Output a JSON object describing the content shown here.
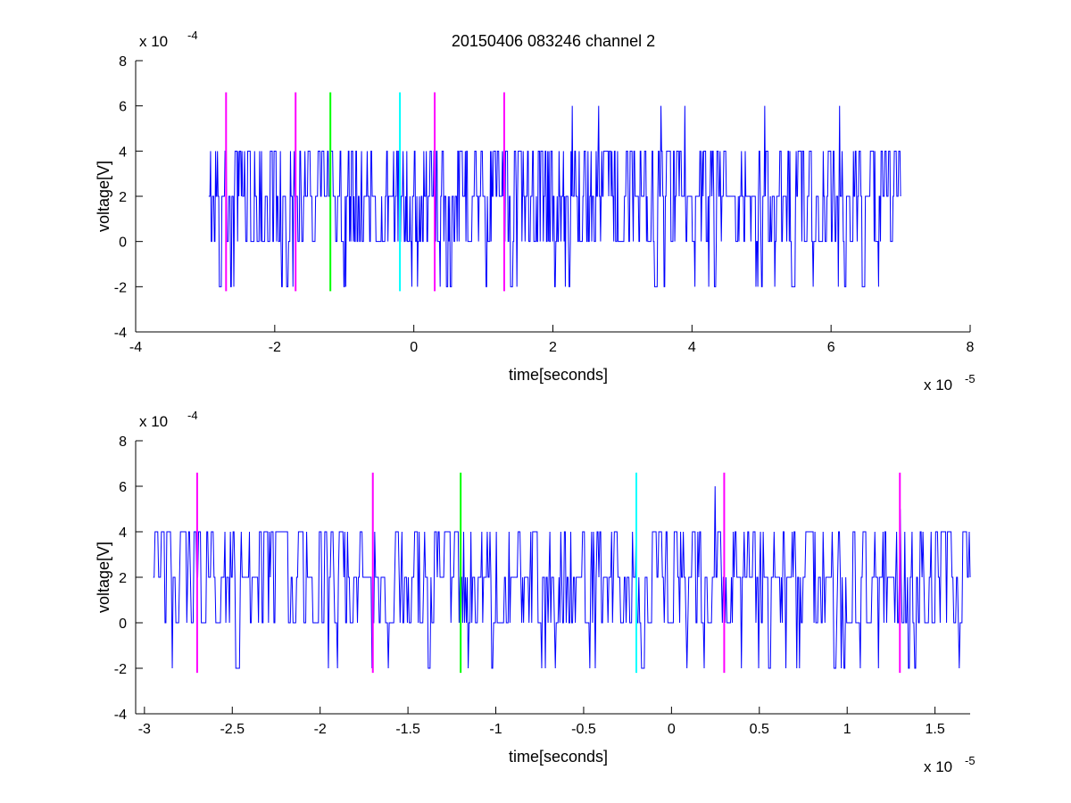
{
  "figure": {
    "title": "20150406 083246 channel 2"
  },
  "chart_data": [
    {
      "type": "line",
      "xlabel": "time[seconds]",
      "ylabel": "voltage[V]",
      "x_exponent_label": "x 10",
      "x_exponent": "-5",
      "y_exponent_label": "x 10",
      "y_exponent": "-4",
      "xlim": [
        -4e-05,
        8e-05
      ],
      "ylim": [
        -0.0004,
        0.0008
      ],
      "xticks": [
        -4e-05,
        -2e-05,
        0,
        2e-05,
        4e-05,
        6e-05,
        8e-05
      ],
      "xtick_labels": [
        "-4",
        "-2",
        "0",
        "2",
        "4",
        "6",
        "8"
      ],
      "yticks": [
        -0.0004,
        -0.0002,
        0,
        0.0002,
        0.0004,
        0.0006,
        0.0008
      ],
      "ytick_labels": [
        "-4",
        "-2",
        "0",
        "2",
        "4",
        "6",
        "8"
      ],
      "grid": false,
      "signal": {
        "color": "#0000ff",
        "x_start": -2.95e-05,
        "x_end": 7e-05,
        "levels": [
          -0.0002,
          0,
          0.0002,
          0.0004,
          0.0006
        ],
        "peaks": [
          {
            "x": 2.28e-05,
            "y": 0.0006
          },
          {
            "x": 2.66e-05,
            "y": 0.0006
          },
          {
            "x": 3.55e-05,
            "y": 0.0006
          },
          {
            "x": 3.9e-05,
            "y": 0.0006
          },
          {
            "x": 5.05e-05,
            "y": 0.0006
          },
          {
            "x": 6.12e-05,
            "y": 0.0006
          }
        ]
      },
      "markers": [
        {
          "x": -2.7e-05,
          "y0": -0.00022,
          "y1": 0.00066,
          "color": "#ff00ff"
        },
        {
          "x": -1.7e-05,
          "y0": -0.00022,
          "y1": 0.00066,
          "color": "#ff00ff"
        },
        {
          "x": -1.2e-05,
          "y0": -0.00022,
          "y1": 0.00066,
          "color": "#00ff00"
        },
        {
          "x": -2e-06,
          "y0": -0.00022,
          "y1": 0.00066,
          "color": "#00ffff"
        },
        {
          "x": 3e-06,
          "y0": -0.00022,
          "y1": 0.00066,
          "color": "#ff00ff"
        },
        {
          "x": 1.3e-05,
          "y0": -0.00022,
          "y1": 0.00066,
          "color": "#ff00ff"
        }
      ]
    },
    {
      "type": "line",
      "xlabel": "time[seconds]",
      "ylabel": "voltage[V]",
      "x_exponent_label": "x 10",
      "x_exponent": "-5",
      "y_exponent_label": "x 10",
      "y_exponent": "-4",
      "xlim": [
        -3.05e-05,
        1.7e-05
      ],
      "ylim": [
        -0.0004,
        0.0008
      ],
      "xticks": [
        -3e-05,
        -2.5e-05,
        -2e-05,
        -1.5e-05,
        -1e-05,
        -5e-06,
        0,
        5e-06,
        1e-05,
        1.5e-05
      ],
      "xtick_labels": [
        "-3",
        "-2.5",
        "-2",
        "-1.5",
        "-1",
        "-0.5",
        "0",
        "0.5",
        "1",
        "1.5"
      ],
      "yticks": [
        -0.0004,
        -0.0002,
        0,
        0.0002,
        0.0004,
        0.0006,
        0.0008
      ],
      "ytick_labels": [
        "-4",
        "-2",
        "0",
        "2",
        "4",
        "6",
        "8"
      ],
      "grid": false,
      "signal": {
        "color": "#0000ff",
        "x_start": -2.95e-05,
        "x_end": 1.7e-05,
        "levels": [
          -0.0002,
          0,
          0.0002,
          0.0004,
          0.0006
        ],
        "peaks": [
          {
            "x": 2.5e-06,
            "y": 0.0006
          },
          {
            "x": 1.3e-05,
            "y": 0.0005
          }
        ]
      },
      "markers": [
        {
          "x": -2.7e-05,
          "y0": -0.00022,
          "y1": 0.00066,
          "color": "#ff00ff"
        },
        {
          "x": -1.7e-05,
          "y0": -0.00022,
          "y1": 0.00066,
          "color": "#ff00ff"
        },
        {
          "x": -1.2e-05,
          "y0": -0.00022,
          "y1": 0.00066,
          "color": "#00ff00"
        },
        {
          "x": -2e-06,
          "y0": -0.00022,
          "y1": 0.00066,
          "color": "#00ffff"
        },
        {
          "x": 3e-06,
          "y0": -0.00022,
          "y1": 0.00066,
          "color": "#ff00ff"
        },
        {
          "x": 1.3e-05,
          "y0": -0.00022,
          "y1": 0.00066,
          "color": "#ff00ff"
        }
      ]
    }
  ]
}
